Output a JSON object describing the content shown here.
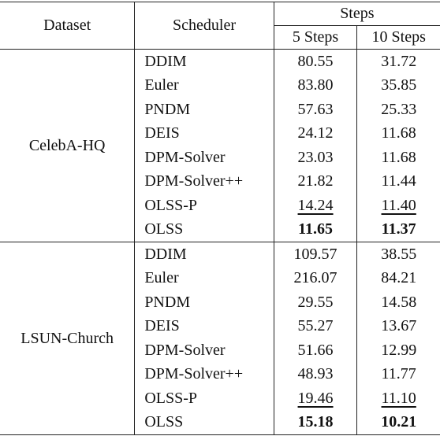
{
  "header": {
    "dataset": "Dataset",
    "scheduler": "Scheduler",
    "steps": "Steps",
    "columns": [
      "5 Steps",
      "10 Steps"
    ]
  },
  "groups": [
    {
      "dataset": "CelebA-HQ",
      "rows": [
        [
          "DDIM",
          "80.55",
          "31.72"
        ],
        [
          "Euler",
          "83.80",
          "35.85"
        ],
        [
          "PNDM",
          "57.63",
          "25.33"
        ],
        [
          "DEIS",
          "24.12",
          "11.68"
        ],
        [
          "DPM-Solver",
          "23.03",
          "11.68"
        ],
        [
          "DPM-Solver++",
          "21.82",
          "11.44"
        ],
        [
          "OLSS-P",
          "14.24",
          "11.40"
        ],
        [
          "OLSS",
          "11.65",
          "11.37"
        ]
      ]
    },
    {
      "dataset": "LSUN-Church",
      "rows": [
        [
          "DDIM",
          "109.57",
          "38.55"
        ],
        [
          "Euler",
          "216.07",
          "84.21"
        ],
        [
          "PNDM",
          "29.55",
          "14.58"
        ],
        [
          "DEIS",
          "55.27",
          "13.67"
        ],
        [
          "DPM-Solver",
          "51.66",
          "12.99"
        ],
        [
          "DPM-Solver++",
          "48.93",
          "11.77"
        ],
        [
          "OLSS-P",
          "19.46",
          "11.10"
        ],
        [
          "OLSS",
          "15.18",
          "10.21"
        ]
      ]
    }
  ]
}
